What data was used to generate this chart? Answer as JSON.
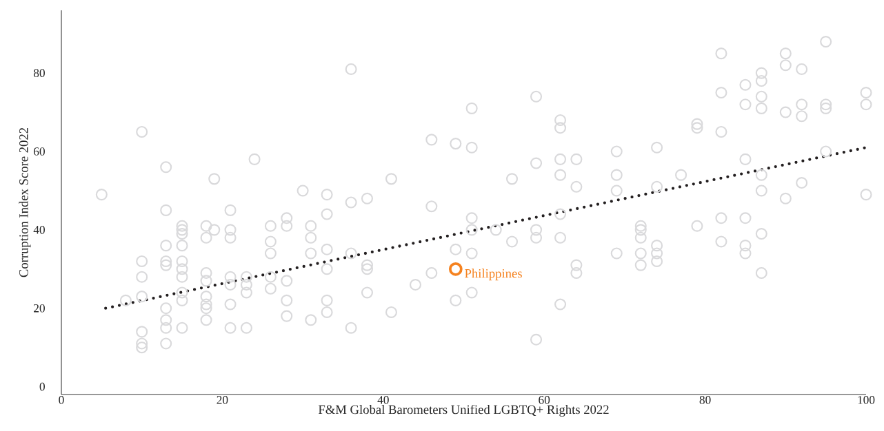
{
  "chart_data": {
    "type": "scatter",
    "xlabel": "F&M Global Barometers Unified LGBTQ+ Rights 2022",
    "ylabel": "Corruption Index Score 2022",
    "xlim": [
      0,
      100
    ],
    "ylim": [
      -2,
      96
    ],
    "xticks": [
      0,
      20,
      40,
      60,
      80,
      100
    ],
    "yticks": [
      0,
      20,
      40,
      60,
      80
    ],
    "marker": "circle",
    "series": [
      {
        "color": "#d9d9db",
        "x": [
          5,
          8,
          10,
          10,
          10,
          10,
          10,
          10,
          10,
          13,
          13,
          13,
          13,
          13,
          13,
          13,
          13,
          13,
          15,
          15,
          15,
          15,
          15,
          15,
          15,
          15,
          15,
          15,
          18,
          18,
          18,
          18,
          18,
          18,
          18,
          18,
          19,
          19,
          21,
          21,
          21,
          21,
          21,
          21,
          21,
          23,
          23,
          23,
          23,
          24,
          26,
          26,
          26,
          26,
          26,
          28,
          28,
          28,
          28,
          28,
          30,
          31,
          31,
          31,
          31,
          33,
          33,
          33,
          33,
          33,
          33,
          36,
          36,
          36,
          36,
          38,
          38,
          38,
          38,
          41,
          41,
          44,
          46,
          46,
          46,
          49,
          49,
          49,
          51,
          51,
          51,
          51,
          51,
          51,
          54,
          56,
          56,
          59,
          59,
          59,
          59,
          59,
          62,
          62,
          62,
          62,
          62,
          62,
          62,
          64,
          64,
          64,
          64,
          69,
          69,
          69,
          69,
          72,
          72,
          72,
          72,
          72,
          74,
          74,
          74,
          74,
          74,
          77,
          79,
          79,
          79,
          82,
          82,
          82,
          82,
          82,
          85,
          85,
          85,
          85,
          85,
          85,
          87,
          87,
          87,
          87,
          87,
          87,
          87,
          87,
          90,
          90,
          90,
          90,
          92,
          92,
          92,
          92,
          95,
          95,
          95,
          95,
          100,
          100,
          100
        ],
        "values": [
          49,
          22,
          65,
          32,
          28,
          23,
          14,
          11,
          10,
          56,
          45,
          36,
          32,
          31,
          20,
          17,
          15,
          11,
          41,
          40,
          39,
          36,
          32,
          30,
          28,
          24,
          22,
          15,
          41,
          38,
          29,
          27,
          23,
          21,
          20,
          17,
          40,
          53,
          45,
          40,
          38,
          28,
          26,
          21,
          15,
          28,
          26,
          24,
          15,
          58,
          41,
          37,
          34,
          28,
          25,
          43,
          41,
          27,
          22,
          18,
          50,
          41,
          38,
          34,
          17,
          49,
          44,
          35,
          30,
          22,
          19,
          81,
          47,
          34,
          15,
          48,
          31,
          30,
          24,
          53,
          19,
          26,
          63,
          46,
          29,
          62,
          35,
          22,
          71,
          61,
          43,
          40,
          34,
          24,
          40,
          53,
          37,
          74,
          57,
          40,
          38,
          12,
          68,
          66,
          58,
          54,
          44,
          38,
          21,
          58,
          51,
          31,
          29,
          60,
          54,
          50,
          34,
          41,
          40,
          38,
          34,
          31,
          61,
          51,
          36,
          34,
          32,
          54,
          67,
          66,
          41,
          85,
          75,
          65,
          43,
          37,
          77,
          72,
          58,
          43,
          36,
          34,
          80,
          78,
          74,
          71,
          54,
          50,
          39,
          29,
          85,
          82,
          70,
          48,
          81,
          72,
          69,
          52,
          88,
          72,
          71,
          60,
          75,
          72,
          49
        ]
      },
      {
        "name": "Philippines",
        "color": "#f5821f",
        "x": [
          49
        ],
        "values": [
          30
        ]
      },
      {
        "type": "line",
        "color": "#231f20",
        "marker": "none",
        "line_style": "dotted",
        "x": [
          5.5,
          100
        ],
        "values": [
          20,
          61
        ]
      }
    ]
  }
}
